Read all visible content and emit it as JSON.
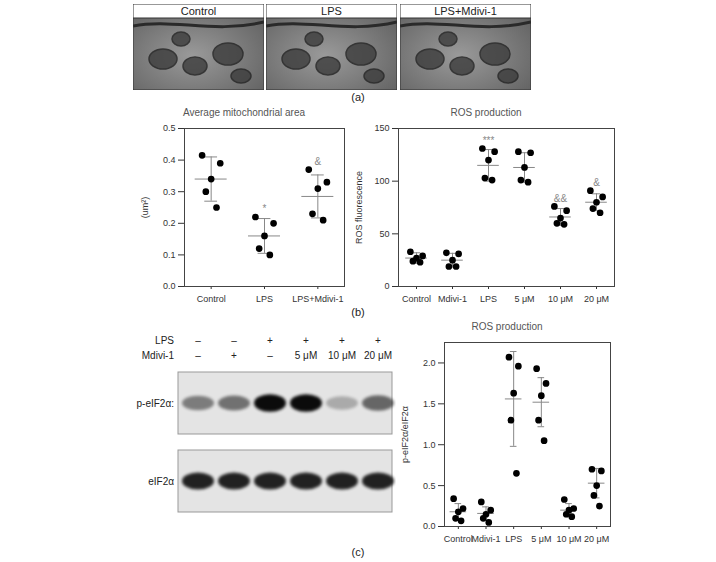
{
  "panel_labels": [
    "(a)",
    "(b)",
    "(c)"
  ],
  "micrographs": [
    "Control",
    "LPS",
    "LPS+Mdivi-1"
  ],
  "blot": {
    "treatments": [
      {
        "name": "LPS",
        "signs": [
          "–",
          "–",
          "+",
          "+",
          "+",
          "+"
        ]
      },
      {
        "name": "Mdivi-1",
        "signs": [
          "–",
          "+",
          "–",
          "5 μM",
          "10 μM",
          "20 μM"
        ]
      }
    ],
    "bands": [
      {
        "name": "p-eIF2α:",
        "intensity": [
          0.45,
          0.5,
          0.95,
          0.95,
          0.25,
          0.55
        ]
      },
      {
        "name": "eIF2α",
        "intensity": [
          0.85,
          0.85,
          0.85,
          0.85,
          0.85,
          0.85
        ]
      }
    ]
  },
  "chart_data": [
    {
      "type": "scatter",
      "title": "Average mitochondrial area",
      "ylabel": "(um²)",
      "categories": [
        "Control",
        "LPS",
        "LPS+Mdivi-1"
      ],
      "values": [
        [
          0.415,
          0.39,
          0.34,
          0.3,
          0.25
        ],
        [
          0.22,
          0.2,
          0.16,
          0.12,
          0.1
        ],
        [
          0.37,
          0.33,
          0.31,
          0.23,
          0.21
        ]
      ],
      "means": [
        0.34,
        0.16,
        0.285
      ],
      "errors": [
        0.07,
        0.055,
        0.068
      ],
      "ylim": [
        0,
        0.5
      ],
      "yticks": [
        {
          "value": 0,
          "label": "0.0"
        },
        0.1,
        0.2,
        0.3,
        0.4,
        0.5
      ],
      "annotations": [
        {
          "category": "LPS",
          "text": "*"
        },
        {
          "category": "LPS+Mdivi-1",
          "text": "&"
        }
      ],
      "color": "#000000",
      "marker": "circle",
      "grid": false
    },
    {
      "type": "scatter",
      "title": "ROS production",
      "ylabel": "ROS fluorescence",
      "categories": [
        "Control",
        "Mdivi-1",
        "LPS",
        "5 μM",
        "10 μM",
        "20 μM"
      ],
      "values": [
        [
          33,
          29,
          27,
          24,
          23
        ],
        [
          32,
          31,
          25,
          19,
          19
        ],
        [
          131,
          128,
          120,
          103,
          101
        ],
        [
          128,
          127,
          113,
          101,
          99
        ],
        [
          76,
          72,
          65,
          60,
          59
        ],
        [
          91,
          85,
          80,
          74,
          70
        ]
      ],
      "means": [
        27,
        25,
        115,
        113,
        66,
        80
      ],
      "errors": [
        5,
        6.5,
        15,
        14,
        8,
        8
      ],
      "ylim": [
        0,
        150
      ],
      "yticks": [
        0,
        50,
        100,
        150
      ],
      "annotations": [
        {
          "category": "LPS",
          "text": "***"
        },
        {
          "category": "10 μM",
          "text": "&&"
        },
        {
          "category": "20 μM",
          "text": "&"
        }
      ],
      "color": "#000000",
      "marker": "circle",
      "grid": false
    },
    {
      "type": "scatter",
      "title": "ROS production",
      "ylabel": "p-eIF2α/eIF2α",
      "categories": [
        "Control",
        "Mdivi-1",
        "LPS",
        "5 μM",
        "10 μM",
        "20 μM"
      ],
      "values": [
        [
          0.34,
          0.22,
          0.18,
          0.1,
          0.07
        ],
        [
          0.3,
          0.2,
          0.15,
          0.1,
          0.05
        ],
        [
          2.07,
          1.96,
          1.63,
          1.3,
          0.65
        ],
        [
          1.93,
          1.75,
          1.6,
          1.3,
          1.05
        ],
        [
          0.33,
          0.22,
          0.2,
          0.15,
          0.12
        ],
        [
          0.7,
          0.68,
          0.5,
          0.38,
          0.25
        ]
      ],
      "means": [
        0.18,
        0.16,
        1.56,
        1.52,
        0.2,
        0.53
      ],
      "errors": [
        0.1,
        0.08,
        0.58,
        0.3,
        0.08,
        0.18
      ],
      "ylim": [
        0,
        2.25
      ],
      "yticks": [
        {
          "value": 0,
          "label": "0.0"
        },
        0.5,
        {
          "value": 1,
          "label": "1.0"
        },
        1.5,
        {
          "value": 2,
          "label": "2.0"
        }
      ],
      "annotations": [],
      "color": "#000000",
      "marker": "circle",
      "grid": false
    }
  ]
}
